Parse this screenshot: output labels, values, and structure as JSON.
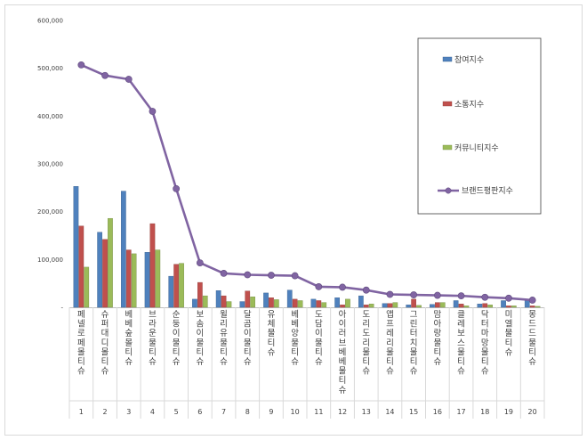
{
  "chart_data": {
    "type": "bar",
    "title": "",
    "xlabel": "",
    "ylabel": "",
    "ylim": [
      0,
      600000
    ],
    "yticks": [
      "-",
      "100,000",
      "200,000",
      "300,000",
      "400,000",
      "500,000",
      "600,000"
    ],
    "grid": false,
    "legend_position": "top-right",
    "categories": [
      "페넬로페 몰티슈",
      "슈퍼대디 몰티슈",
      "베베숲 몰티슈",
      "브라운 물티슈",
      "순둥이 물티슈",
      "보솜이 물티슈",
      "윌리유 물티슈",
      "달곰이 물티슈",
      "유체 물티슈",
      "베베앙 물티슈",
      "도담이 물티슈",
      "아이러브베베 물티슈",
      "도리도리 물티슈",
      "앱프레리 물티슈",
      "그린터치 물티슈",
      "맘아랑 물티슈",
      "클레보스 물티슈",
      "닥터마망 물티슈",
      "미엘 물티슈",
      "몽드드 물티슈"
    ],
    "index_labels": [
      "1",
      "2",
      "3",
      "4",
      "5",
      "6",
      "7",
      "8",
      "9",
      "10",
      "11",
      "12",
      "13",
      "14",
      "15",
      "16",
      "17",
      "18",
      "19",
      "20"
    ],
    "series": [
      {
        "name": "참여지수",
        "kind": "bar",
        "color": "#4f81bd",
        "values": [
          253000,
          157000,
          243000,
          115000,
          65000,
          17000,
          35000,
          12000,
          30000,
          36000,
          17000,
          20000,
          24000,
          8000,
          5000,
          6000,
          14000,
          7000,
          14000,
          14000
        ]
      },
      {
        "name": "소통지수",
        "kind": "bar",
        "color": "#c0504d",
        "values": [
          170000,
          142000,
          120000,
          175000,
          90000,
          52000,
          24000,
          34000,
          20000,
          17000,
          14000,
          5000,
          5000,
          8000,
          17000,
          10000,
          7000,
          8000,
          3000,
          3000
        ]
      },
      {
        "name": "커뮤니티지수",
        "kind": "bar",
        "color": "#9bbb59",
        "values": [
          84000,
          186000,
          112000,
          120000,
          92000,
          24000,
          12000,
          22000,
          16000,
          14000,
          10000,
          17000,
          7000,
          10000,
          4000,
          10000,
          3000,
          5000,
          3000,
          2000
        ]
      },
      {
        "name": "브랜드평판지수",
        "kind": "line",
        "color": "#8064a2",
        "values": [
          507000,
          485000,
          477000,
          410000,
          248000,
          93000,
          71000,
          68000,
          67000,
          66000,
          43000,
          42000,
          36000,
          27000,
          26000,
          25000,
          24000,
          21000,
          19000,
          15000
        ]
      }
    ]
  }
}
